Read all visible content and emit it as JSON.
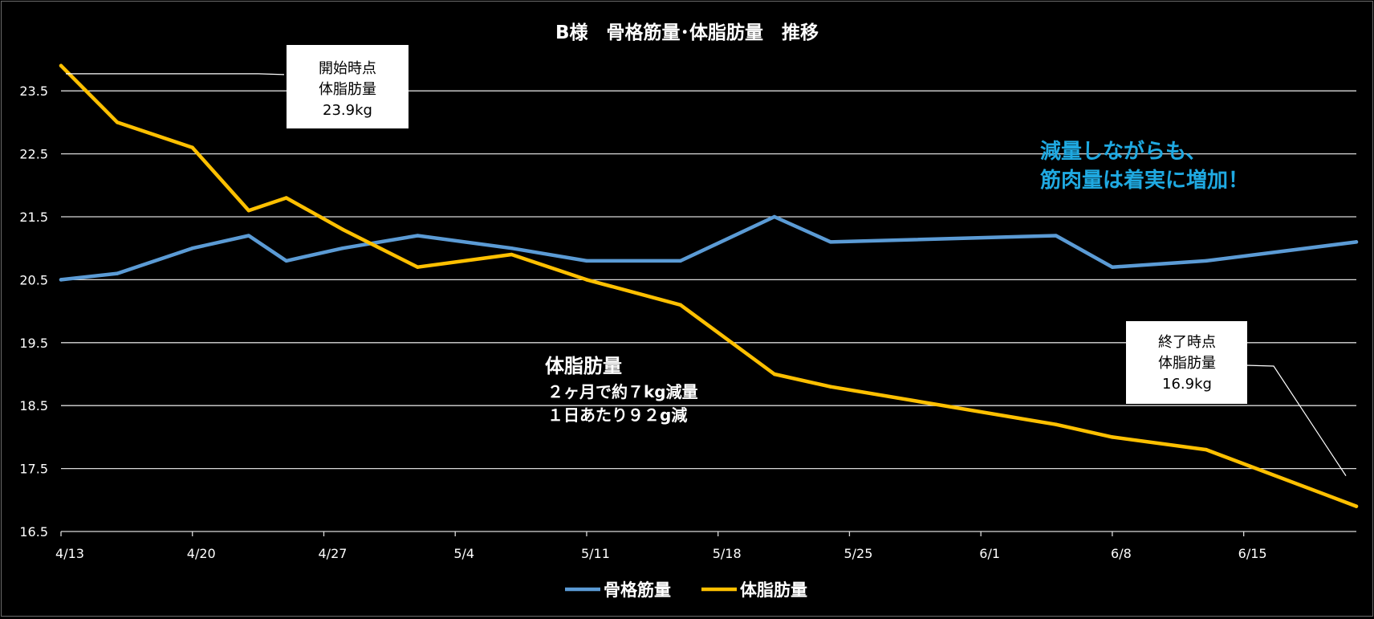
{
  "chart_data": {
    "type": "line",
    "title": "B様　骨格筋量･体脂肪量　推移",
    "xlabel": "",
    "ylabel": "",
    "ylim": [
      16.5,
      24.0
    ],
    "yticks": [
      "16.5",
      "17.5",
      "18.5",
      "19.5",
      "20.5",
      "21.5",
      "22.5",
      "23.5"
    ],
    "x_start": "4/13",
    "x_end": "6/21",
    "xtick_labels": [
      "4/13",
      "4/20",
      "4/27",
      "5/4",
      "5/11",
      "5/18",
      "5/25",
      "6/1",
      "6/8",
      "6/15"
    ],
    "grid": true,
    "legend_position": "bottom",
    "series": [
      {
        "name": "骨格筋量",
        "color": "#5B9BD5",
        "points": [
          [
            "4/13",
            20.5
          ],
          [
            "4/16",
            20.6
          ],
          [
            "4/20",
            21.0
          ],
          [
            "4/23",
            21.2
          ],
          [
            "4/25",
            20.8
          ],
          [
            "4/28",
            21.0
          ],
          [
            "5/2",
            21.2
          ],
          [
            "5/7",
            21.0
          ],
          [
            "5/11",
            20.8
          ],
          [
            "5/16",
            20.8
          ],
          [
            "5/21",
            21.5
          ],
          [
            "5/24",
            21.1
          ],
          [
            "6/5",
            21.2
          ],
          [
            "6/8",
            20.7
          ],
          [
            "6/13",
            20.8
          ],
          [
            "6/21",
            21.1
          ]
        ]
      },
      {
        "name": "体脂肪量",
        "color": "#FFC000",
        "points": [
          [
            "4/13",
            23.9
          ],
          [
            "4/16",
            23.0
          ],
          [
            "4/20",
            22.6
          ],
          [
            "4/23",
            21.6
          ],
          [
            "4/25",
            21.8
          ],
          [
            "4/28",
            21.3
          ],
          [
            "5/2",
            20.7
          ],
          [
            "5/7",
            20.9
          ],
          [
            "5/11",
            20.5
          ],
          [
            "5/16",
            20.1
          ],
          [
            "5/21",
            19.0
          ],
          [
            "5/24",
            18.8
          ],
          [
            "6/5",
            18.2
          ],
          [
            "6/8",
            18.0
          ],
          [
            "6/13",
            17.8
          ],
          [
            "6/21",
            16.9
          ]
        ]
      }
    ],
    "annotations": {
      "start_callout": [
        "開始時点",
        "体脂肪量",
        "23.9kg"
      ],
      "end_callout": [
        "終了時点",
        "体脂肪量",
        "16.9kg"
      ],
      "fat_note": [
        "体脂肪量",
        "２ヶ月で約７kg減量",
        "１日あたり９２g減"
      ],
      "highlight": [
        "減量しながらも、",
        "筋肉量は着実に増加！"
      ],
      "highlight_color": "#1FA9E1"
    }
  }
}
